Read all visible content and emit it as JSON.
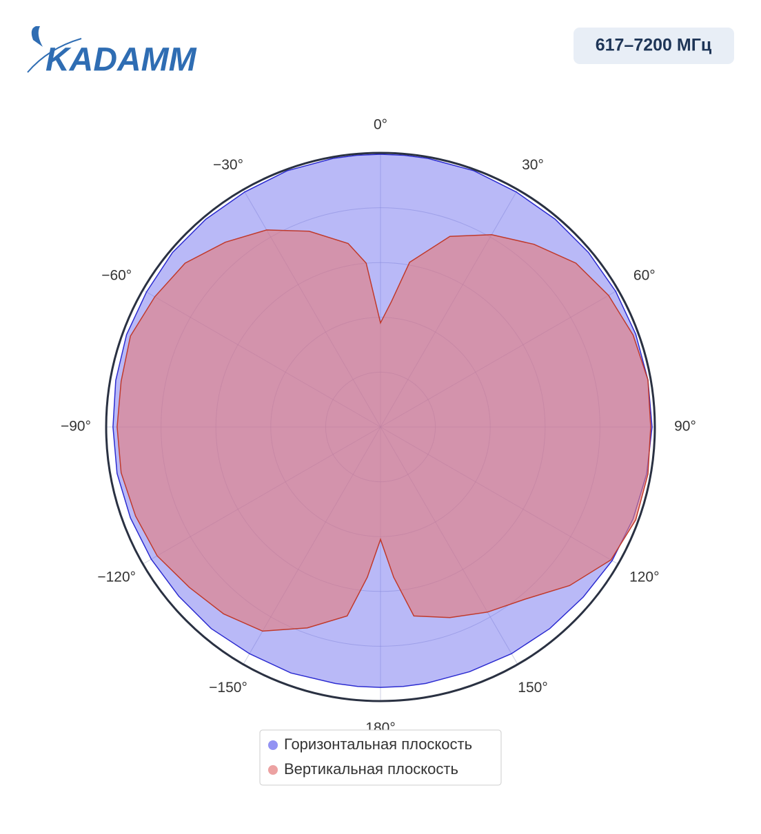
{
  "header": {
    "logo": "KADAMM",
    "badge": "617–7200 МГц"
  },
  "chart_data": {
    "type": "polar",
    "rlim": [
      0,
      1
    ],
    "rticks": [
      0.2,
      0.4,
      0.6,
      0.8,
      1.0
    ],
    "thetaticks": [
      {
        "value": 0,
        "label": "0°"
      },
      {
        "value": 30,
        "label": "30°"
      },
      {
        "value": 60,
        "label": "60°"
      },
      {
        "value": 90,
        "label": "90°"
      },
      {
        "value": 120,
        "label": "120°"
      },
      {
        "value": 150,
        "label": "150°"
      },
      {
        "value": 180,
        "label": "180°"
      },
      {
        "value": -150,
        "label": "−150°"
      },
      {
        "value": -120,
        "label": "−120°"
      },
      {
        "value": -90,
        "label": "−90°"
      },
      {
        "value": -60,
        "label": "−60°"
      },
      {
        "value": -30,
        "label": "−30°"
      }
    ],
    "grid": true,
    "series": [
      {
        "name": "Горизонтальная плоскость",
        "color": "#6464ee",
        "theta": [
          0,
          5,
          10,
          20,
          30,
          40,
          50,
          60,
          70,
          80,
          90,
          100,
          110,
          120,
          130,
          140,
          150,
          160,
          170,
          175,
          180,
          -175,
          -170,
          -160,
          -150,
          -140,
          -130,
          -120,
          -110,
          -100,
          -90,
          -80,
          -70,
          -60,
          -50,
          -40,
          -30,
          -20,
          -10,
          -5
        ],
        "r": [
          0.995,
          0.995,
          0.995,
          0.995,
          0.99,
          0.99,
          0.99,
          0.99,
          0.99,
          0.99,
          0.99,
          0.985,
          0.98,
          0.975,
          0.965,
          0.96,
          0.955,
          0.95,
          0.95,
          0.95,
          0.95,
          0.95,
          0.95,
          0.955,
          0.955,
          0.96,
          0.96,
          0.965,
          0.97,
          0.975,
          0.975,
          0.98,
          0.985,
          0.985,
          0.99,
          0.99,
          0.99,
          0.995,
          0.995,
          0.995
        ]
      },
      {
        "name": "Вертикальная плоскость",
        "color": "#e47a7a",
        "theta": [
          0,
          5,
          10,
          20,
          30,
          40,
          50,
          60,
          70,
          80,
          90,
          100,
          110,
          120,
          130,
          140,
          150,
          160,
          170,
          175,
          180,
          -175,
          -170,
          -160,
          -150,
          -140,
          -130,
          -120,
          -110,
          -100,
          -90,
          -80,
          -70,
          -60,
          -50,
          -40,
          -30,
          -20,
          -10,
          -5
        ],
        "r": [
          0.38,
          0.46,
          0.61,
          0.74,
          0.81,
          0.87,
          0.93,
          0.96,
          0.98,
          0.99,
          0.985,
          0.99,
          0.99,
          0.97,
          0.9,
          0.82,
          0.78,
          0.74,
          0.7,
          0.55,
          0.41,
          0.55,
          0.7,
          0.78,
          0.86,
          0.89,
          0.91,
          0.94,
          0.95,
          0.96,
          0.96,
          0.96,
          0.97,
          0.95,
          0.93,
          0.88,
          0.83,
          0.76,
          0.68,
          0.6
        ]
      }
    ]
  }
}
